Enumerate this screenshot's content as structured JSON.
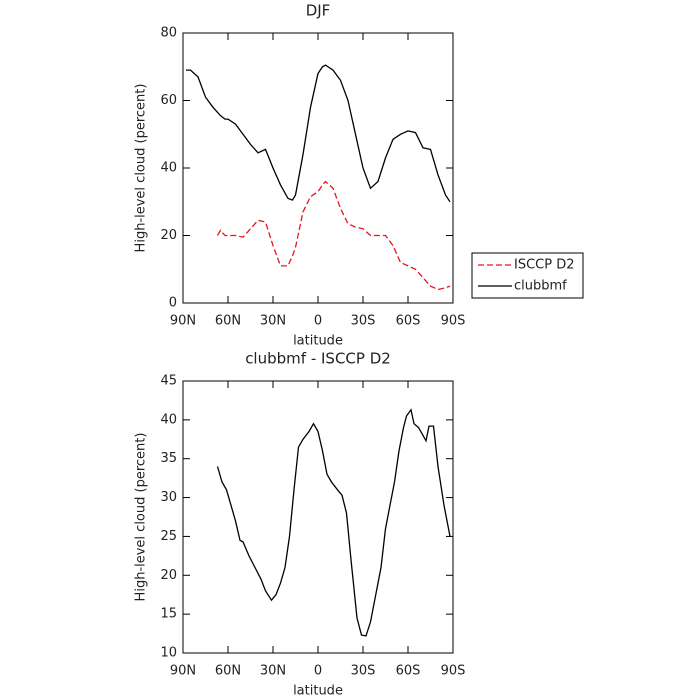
{
  "chart_data": [
    {
      "type": "line",
      "title": "DJF",
      "xlabel": "latitude",
      "ylabel": "High-level cloud (percent)",
      "x": [
        88,
        85,
        80,
        75,
        70,
        67,
        65,
        62,
        60,
        55,
        50,
        45,
        40,
        35,
        30,
        25,
        20,
        17,
        15,
        10,
        5,
        0,
        -3,
        -5,
        -10,
        -15,
        -20,
        -25,
        -30,
        -35,
        -40,
        -45,
        -50,
        -55,
        -60,
        -65,
        -70,
        -75,
        -80,
        -85,
        -88
      ],
      "series": [
        {
          "name": "ISCCP D2",
          "color": "#e8141c",
          "style": "dashed",
          "values": [
            null,
            null,
            null,
            null,
            null,
            20,
            21.5,
            20,
            20,
            20,
            19.5,
            22,
            24.5,
            24,
            17,
            11,
            11,
            14,
            16.5,
            27,
            31.5,
            33,
            35,
            36,
            34,
            28,
            23.5,
            22.5,
            22,
            20,
            20,
            20,
            17,
            12,
            11,
            10,
            7.5,
            5,
            4,
            4.5,
            5
          ]
        },
        {
          "name": "clubbmf",
          "color": "#000000",
          "style": "solid",
          "values": [
            69,
            69,
            67,
            61,
            58,
            56.5,
            55.5,
            54.5,
            54.5,
            53,
            50,
            47,
            44.5,
            45.5,
            40,
            35,
            31,
            30.5,
            32,
            44,
            58,
            68,
            70,
            70.5,
            69,
            66,
            60,
            50,
            40,
            34,
            36,
            43,
            48.5,
            50,
            51,
            50.5,
            46,
            45.5,
            38,
            32,
            30
          ]
        }
      ],
      "xlim": [
        90,
        -90
      ],
      "xticks": [
        {
          "value": 90,
          "label": "90N"
        },
        {
          "value": 60,
          "label": "60N"
        },
        {
          "value": 30,
          "label": "30N"
        },
        0,
        {
          "value": -30,
          "label": "30S"
        },
        {
          "value": -60,
          "label": "60S"
        },
        {
          "value": -90,
          "label": "90S"
        }
      ],
      "ylim": [
        0,
        80
      ],
      "yticks": [
        0,
        20,
        40,
        60,
        80
      ],
      "legend": "right"
    },
    {
      "type": "line",
      "title": "clubbmf - ISCCP D2",
      "xlabel": "latitude",
      "ylabel": "High-level cloud (percent)",
      "x": [
        67,
        64,
        61,
        58,
        55,
        52,
        50,
        46,
        42,
        38,
        35,
        31,
        28,
        25,
        22,
        19,
        16,
        13,
        10,
        6,
        3,
        0,
        -3,
        -6,
        -9,
        -13,
        -16,
        -19,
        -22,
        -26,
        -29,
        -32,
        -35,
        -38,
        -42,
        -45,
        -48,
        -51,
        -54,
        -57,
        -59,
        -62,
        -64,
        -67,
        -70,
        -72,
        -74,
        -77,
        -80,
        -84,
        -88
      ],
      "values": [
        34,
        32,
        31,
        29,
        27,
        24.5,
        24.3,
        22.5,
        21,
        19.5,
        18,
        16.8,
        17.5,
        19,
        21,
        25,
        31,
        36.5,
        37.5,
        38.5,
        39.5,
        38.5,
        36,
        33,
        32,
        31,
        30.3,
        28,
        22,
        14.5,
        12.3,
        12.2,
        14,
        17,
        21,
        26,
        29,
        32,
        36,
        39,
        40.5,
        41.3,
        39.5,
        39,
        38,
        37.3,
        39.2,
        39.2,
        34,
        29,
        25
      ],
      "color": "#000000",
      "xlim": [
        90,
        -90
      ],
      "xticks": [
        {
          "value": 90,
          "label": "90N"
        },
        {
          "value": 60,
          "label": "60N"
        },
        {
          "value": 30,
          "label": "30N"
        },
        0,
        {
          "value": -30,
          "label": "30S"
        },
        {
          "value": -60,
          "label": "60S"
        },
        {
          "value": -90,
          "label": "90S"
        }
      ],
      "ylim": [
        10,
        45
      ],
      "yticks": [
        10,
        15,
        20,
        25,
        30,
        35,
        40,
        45
      ]
    }
  ]
}
